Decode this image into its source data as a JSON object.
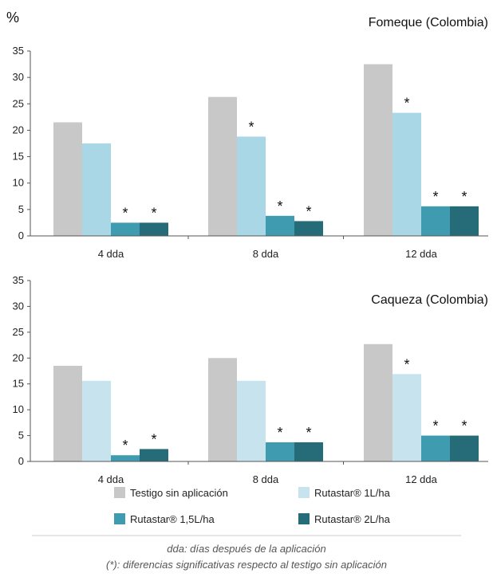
{
  "chart_data": [
    {
      "type": "bar",
      "title": "Fomeque (Colombia)",
      "ylabel": "%",
      "ylim": [
        0,
        35
      ],
      "yticks": [
        0,
        5,
        10,
        15,
        20,
        25,
        30,
        35
      ],
      "categories": [
        "4 dda",
        "8 dda",
        "12 dda"
      ],
      "series": [
        {
          "name": "Testigo sin aplicación",
          "values": [
            21.5,
            26.3,
            32.5
          ],
          "significant": [
            false,
            false,
            false
          ]
        },
        {
          "name": "Rutastar® 1L/ha",
          "values": [
            17.5,
            18.8,
            23.3
          ],
          "significant": [
            false,
            true,
            true
          ]
        },
        {
          "name": "Rutastar® 1,5L/ha",
          "values": [
            2.5,
            3.8,
            5.6
          ],
          "significant": [
            true,
            true,
            true
          ]
        },
        {
          "name": "Rutastar® 2L/ha",
          "values": [
            2.5,
            2.8,
            5.6
          ],
          "significant": [
            true,
            true,
            true
          ]
        }
      ],
      "grid": false
    },
    {
      "type": "bar",
      "title": "Caqueza (Colombia)",
      "ylim": [
        0,
        35
      ],
      "yticks": [
        0,
        5,
        10,
        15,
        20,
        25,
        30,
        35
      ],
      "categories": [
        "4 dda",
        "8 dda",
        "12 dda"
      ],
      "series": [
        {
          "name": "Testigo sin aplicación",
          "values": [
            18.5,
            20.0,
            22.7
          ],
          "significant": [
            false,
            false,
            false
          ]
        },
        {
          "name": "Rutastar® 1L/ha",
          "values": [
            15.6,
            15.6,
            16.9
          ],
          "significant": [
            false,
            false,
            true
          ]
        },
        {
          "name": "Rutastar® 1,5L/ha",
          "values": [
            1.2,
            3.7,
            5.0
          ],
          "significant": [
            true,
            true,
            true
          ]
        },
        {
          "name": "Rutastar® 2L/ha",
          "values": [
            2.4,
            3.7,
            5.0
          ],
          "significant": [
            true,
            true,
            true
          ]
        }
      ],
      "grid": false
    }
  ],
  "colors": [
    "#c8c8c8",
    "#a9d7e6",
    "#3f9cb0",
    "#266b78"
  ],
  "colors_bottom": [
    "#c8c8c8",
    "#c6e3ee",
    "#3f9cb0",
    "#266b78"
  ],
  "significance_marker": "*",
  "legend": {
    "placement": "bottom",
    "items": [
      "Testigo sin aplicación",
      "Rutastar® 1L/ha",
      "Rutastar® 1,5L/ha",
      "Rutastar® 2L/ha"
    ]
  },
  "footnotes": {
    "line1": "dda: días después de la aplicación",
    "line2": "(*): diferencias significativas respecto al testigo sin aplicación"
  }
}
